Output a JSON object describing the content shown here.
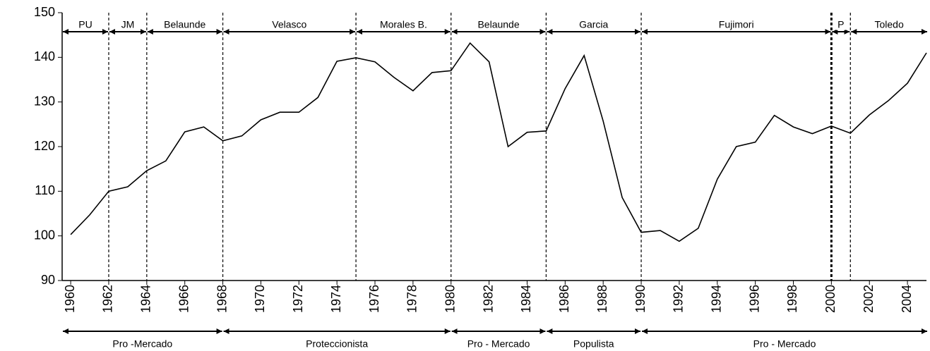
{
  "chart_data": {
    "type": "line",
    "x": [
      1960,
      1961,
      1962,
      1963,
      1964,
      1965,
      1966,
      1967,
      1968,
      1969,
      1970,
      1971,
      1972,
      1973,
      1974,
      1975,
      1976,
      1977,
      1978,
      1979,
      1980,
      1981,
      1982,
      1983,
      1984,
      1985,
      1986,
      1987,
      1988,
      1989,
      1990,
      1991,
      1992,
      1993,
      1994,
      1995,
      1996,
      1997,
      1998,
      1999,
      2000,
      2001,
      2002,
      2003,
      2004,
      2005
    ],
    "values": [
      100.3,
      104.7,
      110,
      111,
      114.6,
      116.8,
      123.3,
      124.4,
      121.3,
      122.4,
      126,
      127.7,
      127.7,
      131,
      139.1,
      139.9,
      139,
      135.5,
      132.5,
      136.6,
      137,
      143.2,
      139,
      120,
      123.2,
      123.5,
      133,
      140.4,
      125.7,
      108.6,
      100.8,
      101.2,
      98.8,
      101.7,
      112.7,
      120,
      121,
      127,
      124.4,
      122.9,
      124.6,
      123,
      127.1,
      130.3,
      134.2,
      141
    ],
    "color": "#000000",
    "xlim": [
      1959.55,
      2005
    ],
    "xticks": [
      1960,
      1962,
      1964,
      1966,
      1968,
      1970,
      1972,
      1974,
      1976,
      1978,
      1980,
      1982,
      1984,
      1986,
      1988,
      1990,
      1992,
      1994,
      1996,
      1998,
      2000,
      2002,
      2004
    ],
    "ylim": [
      90,
      150
    ],
    "yticks": [
      90,
      100,
      110,
      120,
      130,
      140,
      150
    ],
    "boundaries": [
      1962,
      1964,
      1968,
      1975,
      1980,
      1985,
      1990,
      2000,
      2001
    ],
    "top_periods": [
      "PU",
      "JM",
      "Belaunde",
      "Velasco",
      "Morales B.",
      "Belaunde",
      "Garcia",
      "Fujimori",
      "P",
      "Toledo"
    ],
    "bottom_boundaries": [
      1968,
      1980,
      1985,
      1990
    ],
    "bottom_periods": [
      "Pro -Mercado",
      "Proteccionista",
      "Pro - Mercado",
      "Populista",
      "Pro - Mercado"
    ]
  }
}
